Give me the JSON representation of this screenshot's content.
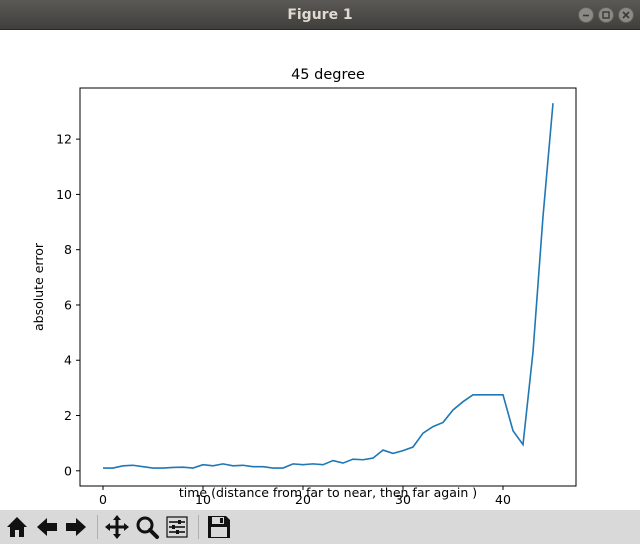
{
  "window": {
    "title": "Figure 1"
  },
  "toolbar": {
    "buttons": [
      {
        "icon": "home-icon"
      },
      {
        "icon": "back-arrow-icon"
      },
      {
        "icon": "forward-arrow-icon"
      },
      {
        "icon": "pan-icon"
      },
      {
        "icon": "zoom-icon"
      },
      {
        "icon": "configure-subplots-icon"
      },
      {
        "icon": "save-icon"
      }
    ]
  },
  "chart_data": {
    "type": "line",
    "title": "45 degree",
    "xlabel": "time (distance from far to near, then far again )",
    "ylabel": "absolute error",
    "xlim": [
      -2.3,
      47.3
    ],
    "ylim": [
      -0.55,
      13.85
    ],
    "xticks": [
      0,
      10,
      20,
      30,
      40
    ],
    "yticks": [
      0,
      2,
      4,
      6,
      8,
      10,
      12
    ],
    "grid": false,
    "color": "#1f77b4",
    "series": [
      {
        "x": [
          0,
          1,
          2,
          3,
          4,
          5,
          6,
          7,
          8,
          9,
          10,
          11,
          12,
          13,
          14,
          15,
          16,
          17,
          18,
          19,
          20,
          21,
          22,
          23,
          24,
          25,
          26,
          27,
          28,
          29,
          30,
          31,
          32,
          33,
          34,
          35,
          36,
          37,
          38,
          39,
          40,
          41,
          42,
          43,
          44,
          45
        ],
        "values": [
          0.1,
          0.1,
          0.18,
          0.2,
          0.15,
          0.1,
          0.1,
          0.12,
          0.13,
          0.1,
          0.22,
          0.18,
          0.25,
          0.18,
          0.2,
          0.15,
          0.15,
          0.1,
          0.1,
          0.25,
          0.22,
          0.25,
          0.22,
          0.37,
          0.28,
          0.42,
          0.4,
          0.46,
          0.75,
          0.63,
          0.73,
          0.86,
          1.36,
          1.6,
          1.75,
          2.2,
          2.5,
          2.75,
          2.75,
          2.75,
          2.75,
          1.45,
          0.95,
          4.3,
          9.2,
          13.3
        ]
      }
    ]
  }
}
